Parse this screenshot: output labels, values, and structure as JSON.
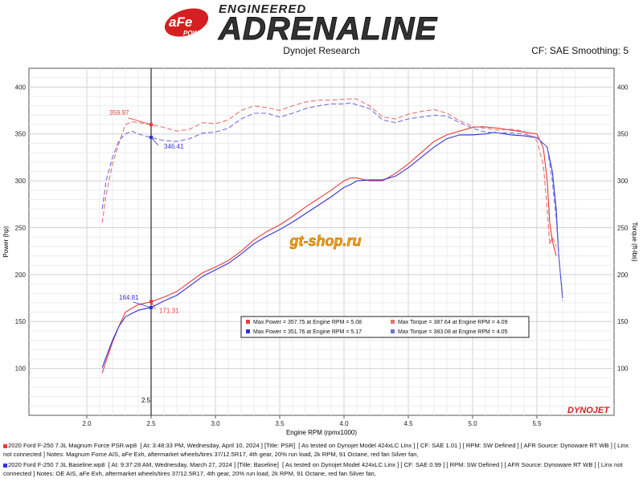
{
  "header": {
    "brand_badge": "aFe",
    "brand_badge_sub": "POWER",
    "brand_top": "ENGINEERED",
    "brand_main": "ADRENALINE",
    "subtitle": "Dynojet Research",
    "cf_text": "CF: SAE Smoothing: 5"
  },
  "colors": {
    "run1_red": "#e83b3b",
    "run2_blue": "#3232d8",
    "power_lt_red": "#e87070",
    "torque_lt_blue": "#7070e0"
  },
  "chart_data": {
    "type": "line",
    "xlabel": "Engine RPM (rpmx1000)",
    "ylabel_left": "Power (hp)",
    "ylabel_right": "Torque (ft-lbs)",
    "xlim": [
      1.55,
      6.1
    ],
    "ylim": [
      50,
      420
    ],
    "xticks": [
      "2.0",
      "2.5",
      "3.0",
      "3.5",
      "4.0",
      "4.5",
      "5.0",
      "5.5"
    ],
    "yticks": [
      "100",
      "150",
      "200",
      "250",
      "300",
      "350",
      "400"
    ],
    "grid": true,
    "cursor_x": 2.5,
    "cursor_label": "2.5",
    "annotations": [
      {
        "text": "359.97",
        "x": 2.5,
        "y": 359.97,
        "color": "#e83b3b"
      },
      {
        "text": "346.41",
        "x": 2.5,
        "y": 346.41,
        "color": "#3232d8"
      },
      {
        "text": "164.81",
        "x": 2.5,
        "y": 164.81,
        "color": "#3232d8"
      },
      {
        "text": "171.31",
        "x": 2.5,
        "y": 171.31,
        "color": "#e83b3b"
      }
    ],
    "watermark": "gt-shop.ru",
    "logo": "DYNOJET",
    "series": [
      {
        "legend": "Max Power = 357.75 at Engine RPM = 5.08",
        "color": "#e83b3b",
        "dash": false,
        "x": [
          2.12,
          2.15,
          2.2,
          2.25,
          2.3,
          2.4,
          2.5,
          2.6,
          2.7,
          2.8,
          2.9,
          3.0,
          3.1,
          3.2,
          3.3,
          3.4,
          3.5,
          3.6,
          3.7,
          3.8,
          3.9,
          4.0,
          4.05,
          4.1,
          4.2,
          4.3,
          4.4,
          4.5,
          4.6,
          4.7,
          4.8,
          4.9,
          5.0,
          5.08,
          5.2,
          5.3,
          5.4,
          5.5,
          5.55,
          5.58,
          5.6,
          5.62,
          5.65
        ],
        "y": [
          95,
          108,
          128,
          145,
          160,
          168,
          171,
          176,
          182,
          192,
          202,
          208,
          215,
          225,
          237,
          246,
          253,
          262,
          272,
          281,
          290,
          300,
          303,
          303,
          300,
          300,
          308,
          318,
          330,
          342,
          349,
          353,
          357,
          357.75,
          356,
          354,
          352,
          350,
          335,
          300,
          255,
          236,
          220
        ]
      },
      {
        "legend": "Max Power = 351.76 at Engine RPM = 5.17",
        "color": "#3232d8",
        "dash": false,
        "x": [
          2.12,
          2.15,
          2.2,
          2.25,
          2.3,
          2.4,
          2.5,
          2.6,
          2.7,
          2.8,
          2.9,
          3.0,
          3.1,
          3.2,
          3.3,
          3.4,
          3.5,
          3.6,
          3.7,
          3.8,
          3.9,
          4.0,
          4.05,
          4.1,
          4.2,
          4.3,
          4.4,
          4.5,
          4.6,
          4.7,
          4.8,
          4.9,
          5.0,
          5.1,
          5.17,
          5.3,
          5.4,
          5.5,
          5.58,
          5.62,
          5.65,
          5.67,
          5.7
        ],
        "y": [
          101,
          112,
          130,
          145,
          155,
          162,
          165,
          172,
          178,
          188,
          198,
          205,
          212,
          222,
          233,
          241,
          248,
          256,
          265,
          274,
          283,
          293,
          296,
          300,
          301,
          301,
          305,
          314,
          325,
          336,
          345,
          349,
          349,
          350,
          351.76,
          349,
          348,
          346,
          336,
          310,
          270,
          220,
          175
        ]
      },
      {
        "legend": "Max Torque = 387.64 at Engine RPM = 4.09",
        "color": "#e87070",
        "dash": true,
        "x": [
          2.12,
          2.15,
          2.2,
          2.25,
          2.3,
          2.35,
          2.4,
          2.5,
          2.6,
          2.7,
          2.8,
          2.9,
          3.0,
          3.1,
          3.2,
          3.3,
          3.4,
          3.5,
          3.6,
          3.7,
          3.8,
          3.9,
          4.0,
          4.09,
          4.2,
          4.3,
          4.4,
          4.5,
          4.6,
          4.7,
          4.8,
          4.9,
          5.0,
          5.1,
          5.2,
          5.3,
          5.4,
          5.5,
          5.55,
          5.58,
          5.6,
          5.62,
          5.65
        ],
        "y": [
          255,
          285,
          318,
          340,
          360,
          363,
          362,
          360,
          357,
          353,
          355,
          362,
          361,
          365,
          375,
          380,
          378,
          375,
          380,
          384,
          386,
          386,
          387,
          387.64,
          380,
          368,
          366,
          371,
          374,
          376,
          372,
          364,
          358,
          356,
          354,
          355,
          353,
          343,
          317,
          270,
          232,
          240,
          230
        ]
      },
      {
        "legend": "Max Torque = 383.08 at Engine RPM = 4.05",
        "color": "#7070e0",
        "dash": true,
        "x": [
          2.12,
          2.15,
          2.2,
          2.25,
          2.3,
          2.35,
          2.4,
          2.5,
          2.6,
          2.7,
          2.8,
          2.9,
          3.0,
          3.1,
          3.2,
          3.3,
          3.4,
          3.5,
          3.6,
          3.7,
          3.8,
          3.9,
          4.0,
          4.05,
          4.2,
          4.3,
          4.4,
          4.5,
          4.6,
          4.7,
          4.8,
          4.9,
          5.0,
          5.1,
          5.2,
          5.3,
          5.4,
          5.5,
          5.58,
          5.62,
          5.65,
          5.67,
          5.7
        ],
        "y": [
          270,
          300,
          325,
          343,
          350,
          353,
          350,
          346,
          343,
          342,
          345,
          351,
          352,
          356,
          366,
          372,
          372,
          368,
          372,
          377,
          380,
          382,
          382,
          383.08,
          377,
          365,
          362,
          366,
          368,
          370,
          369,
          362,
          356,
          352,
          351,
          351,
          350,
          346,
          336,
          300,
          260,
          220,
          172
        ]
      }
    ]
  },
  "notes": [
    "2020 Ford F-250 7.3L Magnum Force PSR.wp8  [ At: 3:48:33 PM, Wednesday, April 10, 2024 ] [Title: PSR]  [ As tested on Dynojet Model 424xLC Linx ] [ CF: SAE 1.01 ] [ RPM: SW Defined ] [ AFR Source: Dynoware RT WB ] [ Linx not connected ] Notes: Magnum Force AIS, aFe Exh, aftermarket wheels/tires 37/12.5R17, 4th gear, 20% run load, 2k RPM, 91 Octane, red fan Silver fan,",
    "2020 Ford F-250 7.3L Baseline.wp8  [ At: 9:37:28 AM, Wednesday, March 27, 2024 ] [Title: Baseline]  [ As tested on Dynojet Model 424xLC Linx ] [ CF: SAE 0.99 ] [ RPM: SW Defined ] [ AFR Source: Dynoware RT WB ] [ Linx not connected ] Notes: OE AIS, aFe Exh, aftermarket wheels/tires 37/12.5R17, 4th gear, 20% run load, 2k RPM, 91 Octane, red fan Silver fan,"
  ]
}
